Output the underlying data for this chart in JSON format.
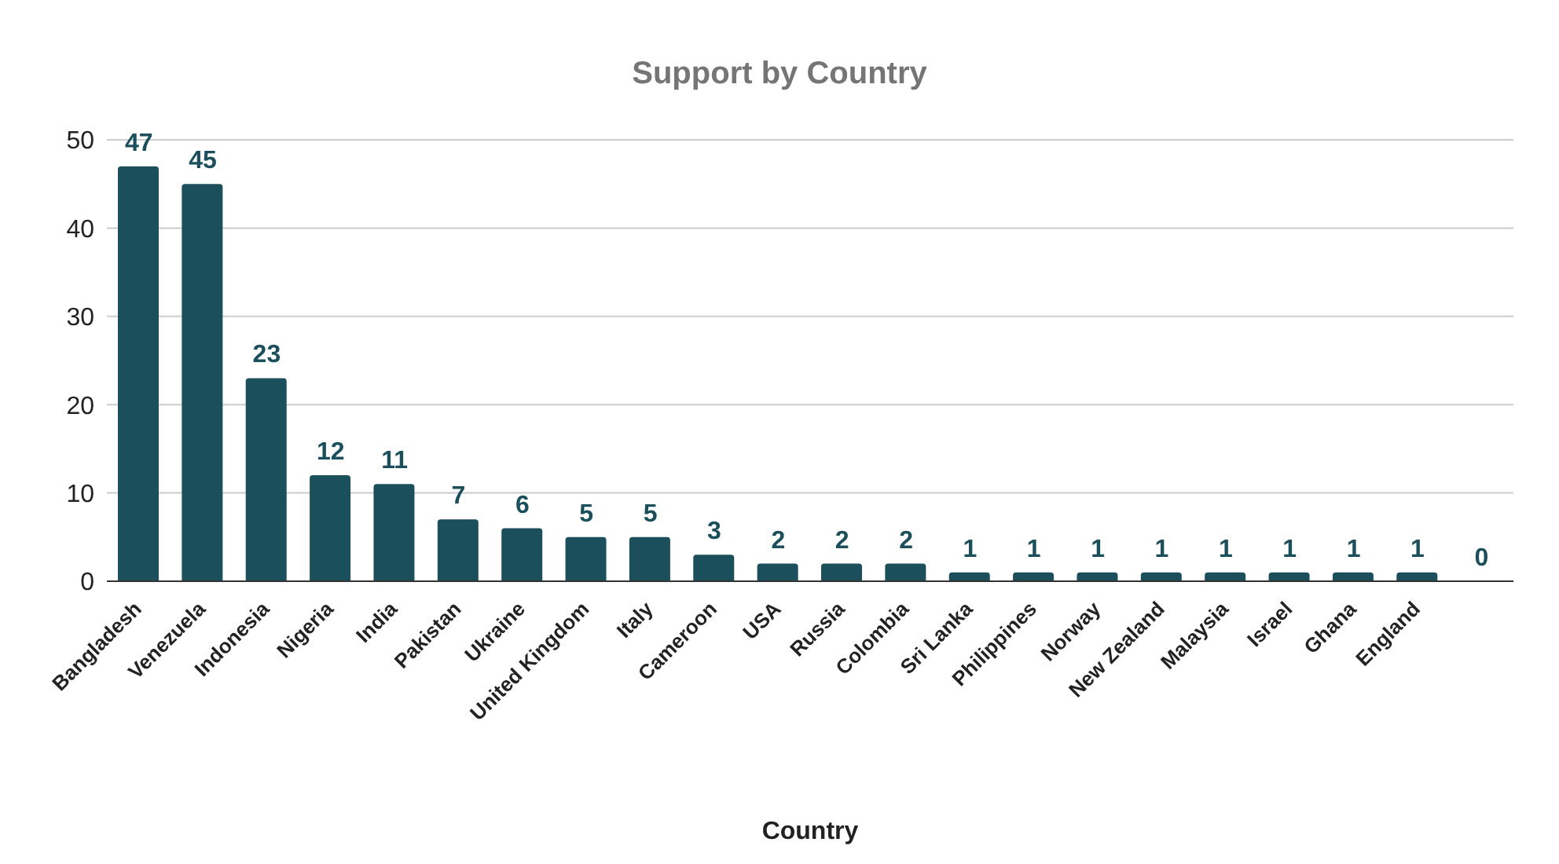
{
  "chart_data": {
    "type": "bar",
    "title": "Support by Country",
    "xlabel": "Country",
    "categories": [
      "Bangladesh",
      "Venezuela",
      "Indonesia",
      "Nigeria",
      "India",
      "Pakistan",
      "Ukraine",
      "United Kingdom",
      "Italy",
      "Cameroon",
      "USA",
      "Russia",
      "Colombia",
      "Sri Lanka",
      "Philippines",
      "Norway",
      "New Zealand",
      "Malaysia",
      "Israel",
      "Ghana",
      "England",
      null
    ],
    "values": [
      47,
      45,
      23,
      12,
      11,
      7,
      6,
      5,
      5,
      3,
      2,
      2,
      2,
      1,
      1,
      1,
      1,
      1,
      1,
      1,
      1,
      0
    ],
    "color": "#1b4f5b",
    "ylim": [
      0,
      50
    ],
    "yticks": [
      0,
      10,
      20,
      30,
      40,
      50
    ],
    "grid": "y",
    "data_labels": true,
    "legend": false
  }
}
